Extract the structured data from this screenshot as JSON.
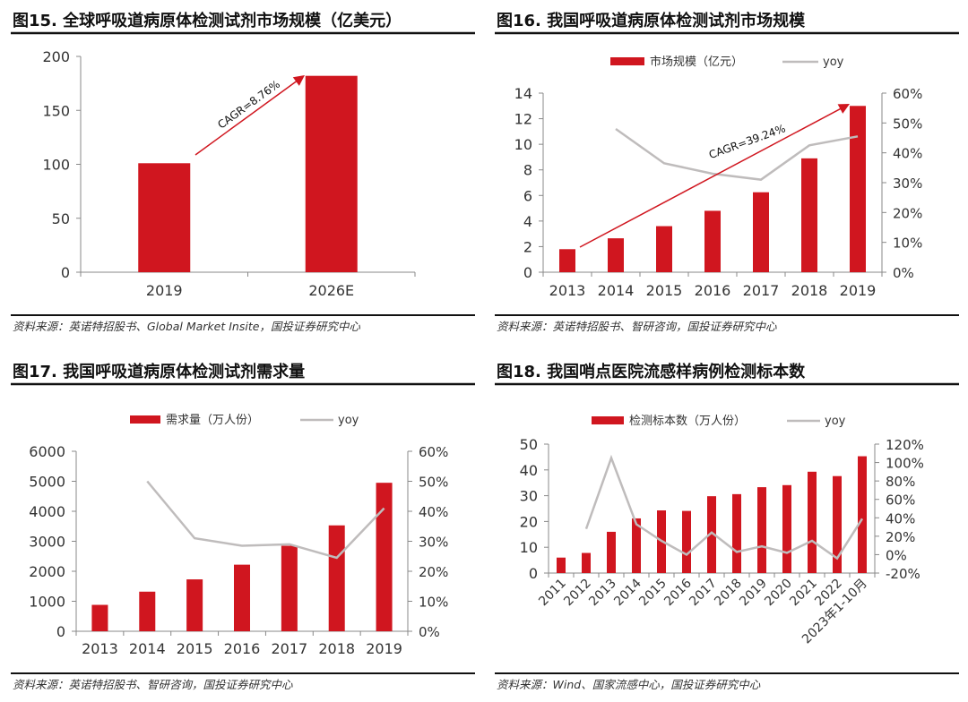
{
  "colors": {
    "bar": "#d0161f",
    "line": "#bfbcbc",
    "axis": "#888888",
    "text": "#333333"
  },
  "chart_data": [
    {
      "type": "bar",
      "title": "图15. 全球呼吸道病原体检测试剂市场规模（亿美元）",
      "categories": [
        "2019",
        "2026E"
      ],
      "values": [
        101,
        182
      ],
      "ylim": [
        0,
        200
      ],
      "yticks": [
        "0",
        "50",
        "100",
        "150",
        "200"
      ],
      "annotation": "CAGR=8.76%",
      "source": "资料来源：英诺特招股书、Global Market Insite，国投证券研究中心"
    },
    {
      "type": "bar+line",
      "title": "图16. 我国呼吸道病原体检测试剂市场规模",
      "categories": [
        "2013",
        "2014",
        "2015",
        "2016",
        "2017",
        "2018",
        "2019"
      ],
      "series": [
        {
          "name": "市场规模（亿元）",
          "type": "bar",
          "values": [
            1.8,
            2.65,
            3.6,
            4.8,
            6.25,
            8.9,
            13.0
          ]
        },
        {
          "name": "yoy",
          "type": "line",
          "axis": "right",
          "values": [
            null,
            48,
            36.5,
            33,
            31,
            42.5,
            45.5
          ]
        }
      ],
      "ylim": [
        0,
        14
      ],
      "yticks": [
        "0",
        "2",
        "4",
        "6",
        "8",
        "10",
        "12",
        "14"
      ],
      "y2lim": [
        0,
        60
      ],
      "y2ticks": [
        "0%",
        "10%",
        "20%",
        "30%",
        "40%",
        "50%",
        "60%"
      ],
      "annotation": "CAGR=39.24%",
      "legend": "top",
      "source": "资料来源：英诺特招股书、智研咨询，国投证券研究中心"
    },
    {
      "type": "bar+line",
      "title": "图17. 我国呼吸道病原体检测试剂需求量",
      "categories": [
        "2013",
        "2014",
        "2015",
        "2016",
        "2017",
        "2018",
        "2019"
      ],
      "series": [
        {
          "name": "需求量（万人份）",
          "type": "bar",
          "values": [
            880,
            1320,
            1730,
            2220,
            2850,
            3530,
            4950
          ]
        },
        {
          "name": "yoy",
          "type": "line",
          "axis": "right",
          "values": [
            null,
            50,
            31,
            28.5,
            29,
            24.5,
            41
          ]
        }
      ],
      "ylim": [
        0,
        6000
      ],
      "yticks": [
        "0",
        "1000",
        "2000",
        "3000",
        "4000",
        "5000",
        "6000"
      ],
      "y2lim": [
        0,
        60
      ],
      "y2ticks": [
        "0%",
        "10%",
        "20%",
        "30%",
        "40%",
        "50%",
        "60%"
      ],
      "legend": "top",
      "source": "资料来源：英诺特招股书、智研咨询，国投证券研究中心"
    },
    {
      "type": "bar+line",
      "title": "图18. 我国哨点医院流感样病例检测标本数",
      "categories": [
        "2011",
        "2012",
        "2013",
        "2014",
        "2015",
        "2016",
        "2017",
        "2018",
        "2019",
        "2020",
        "2021",
        "2022",
        "2023年1-10月"
      ],
      "series": [
        {
          "name": "检测标本数（万人份）",
          "type": "bar",
          "values": [
            6,
            7.8,
            16,
            21.2,
            24.3,
            24.1,
            29.8,
            30.6,
            33.3,
            34.1,
            39.3,
            37.6,
            45.3
          ]
        },
        {
          "name": "yoy",
          "type": "line",
          "axis": "right",
          "values": [
            null,
            28,
            105,
            33,
            15,
            0,
            24,
            3,
            9,
            2,
            15,
            -4,
            39
          ]
        }
      ],
      "ylim": [
        0,
        50
      ],
      "yticks": [
        "0",
        "10",
        "20",
        "30",
        "40",
        "50"
      ],
      "y2lim": [
        -20,
        120
      ],
      "y2ticks": [
        "-20%",
        "0%",
        "20%",
        "40%",
        "60%",
        "80%",
        "100%",
        "120%"
      ],
      "legend": "top",
      "source": "资料来源：Wind、国家流感中心，国投证券研究中心"
    }
  ]
}
